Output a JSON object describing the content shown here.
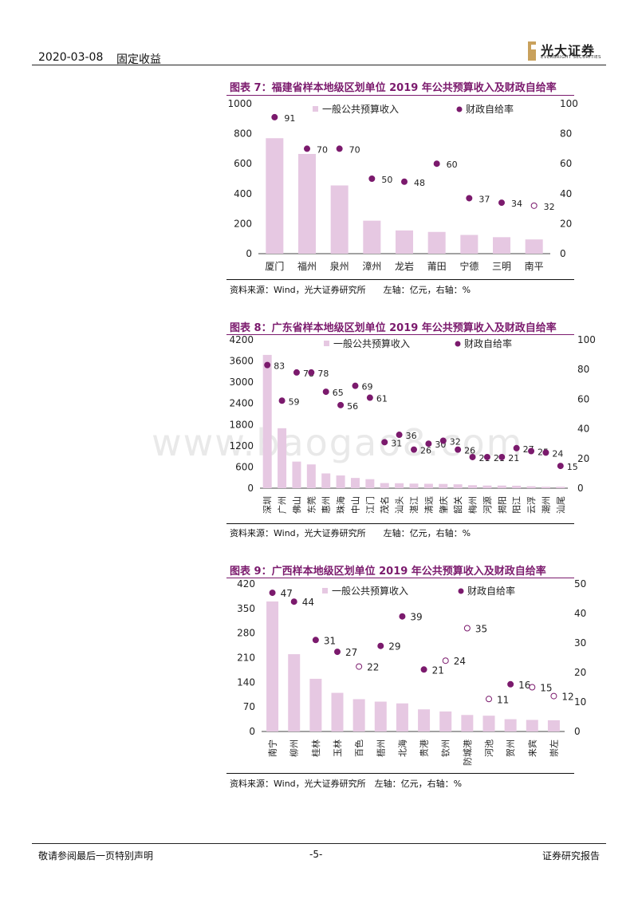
{
  "header": {
    "date": "2020-03-08",
    "category": "固定收益",
    "logo_name": "光大证券",
    "logo_en": "EVERBRIGHT SECURITIES"
  },
  "footer": {
    "disclaimer": "敬请参阅最后一页特别声明",
    "page": "-5-",
    "doc_type": "证券研究报告"
  },
  "watermark": "www.baogao8.com",
  "charts": [
    {
      "title": "图表 7：福建省样本地级区划单位 2019 年公共预算收入及财政自给率",
      "source": "资料来源：Wind，光大证券研究所　　左轴：亿元，右轴：%"
    },
    {
      "title": "图表 8：广东省样本地级区划单位 2019 年公共预算收入及财政自给率",
      "source": "资料来源：Wind，光大证券研究所　　左轴：亿元，右轴：%"
    },
    {
      "title": "图表 9：广西样本地级区划单位 2019 年公共预算收入及财政自给率",
      "source": "资料来源：Wind，光大证券研究所　左轴：亿元，右轴：%"
    }
  ],
  "chart_data": [
    {
      "type": "bar",
      "title": "福建省样本地级区划单位 2019 年公共预算收入及财政自给率",
      "categories": [
        "厦门",
        "福州",
        "泉州",
        "漳州",
        "龙岩",
        "莆田",
        "宁德",
        "三明",
        "南平"
      ],
      "series": [
        {
          "name": "一般公共预算收入",
          "axis": "left",
          "values": [
            770,
            665,
            455,
            220,
            155,
            145,
            125,
            110,
            95
          ]
        },
        {
          "name": "财政自给率",
          "axis": "right",
          "type": "scatter",
          "values": [
            91,
            70,
            70,
            50,
            48,
            60,
            37,
            34,
            32
          ],
          "hollow": [
            8
          ]
        }
      ],
      "ylim": [
        0,
        1000
      ],
      "y2lim": [
        0,
        100
      ],
      "yticks": [
        0,
        200,
        400,
        600,
        800,
        1000
      ],
      "y2ticks": [
        0,
        20,
        40,
        60,
        80,
        100
      ],
      "bar_color": "#e6c8e2",
      "dot_color": "#7b1a6d"
    },
    {
      "type": "bar",
      "title": "广东省样本地级区划单位 2019 年公共预算收入及财政自给率",
      "categories": [
        "深圳",
        "广州",
        "佛山",
        "东莞",
        "惠州",
        "珠海",
        "中山",
        "江门",
        "茂名",
        "汕头",
        "湛江",
        "清远",
        "肇庆",
        "韶关",
        "梅州",
        "河源",
        "揭阳",
        "阳江",
        "云浮",
        "潮州",
        "汕尾"
      ],
      "series": [
        {
          "name": "一般公共预算收入",
          "axis": "left",
          "values": [
            3773,
            1697,
            753,
            673,
            418,
            360,
            290,
            255,
            145,
            140,
            130,
            125,
            120,
            110,
            85,
            75,
            75,
            70,
            55,
            40,
            40
          ]
        },
        {
          "name": "财政自给率",
          "axis": "right",
          "type": "scatter",
          "values": [
            83,
            59,
            78,
            78,
            65,
            56,
            69,
            61,
            31,
            36,
            26,
            30,
            32,
            26,
            21,
            21,
            21,
            27,
            25,
            24,
            15
          ],
          "hollow": []
        }
      ],
      "ylim": [
        0,
        4200
      ],
      "y2lim": [
        0,
        100
      ],
      "yticks": [
        0,
        600,
        1200,
        1800,
        2400,
        3000,
        3600,
        4200
      ],
      "y2ticks": [
        0,
        20,
        40,
        60,
        80,
        100
      ],
      "bar_color": "#e6c8e2",
      "dot_color": "#7b1a6d"
    },
    {
      "type": "bar",
      "title": "广西样本地级区划单位 2019 年公共预算收入及财政自给率",
      "categories": [
        "南宁",
        "柳州",
        "桂林",
        "玉林",
        "百色",
        "梧州",
        "北海",
        "贵港",
        "钦州",
        "防城港",
        "河池",
        "贺州",
        "来宾",
        "崇左"
      ],
      "series": [
        {
          "name": "一般公共预算收入",
          "axis": "left",
          "values": [
            370,
            220,
            150,
            110,
            92,
            85,
            80,
            63,
            57,
            47,
            45,
            35,
            33,
            32
          ]
        },
        {
          "name": "财政自给率",
          "axis": "right",
          "type": "scatter",
          "values": [
            47,
            44,
            31,
            27,
            22,
            29,
            39,
            21,
            24,
            35,
            11,
            16,
            15,
            12
          ],
          "hollow": [
            4,
            8,
            9,
            10,
            12,
            13
          ]
        }
      ],
      "ylim": [
        0,
        420
      ],
      "y2lim": [
        0,
        50
      ],
      "yticks": [
        0,
        70,
        140,
        210,
        280,
        350,
        420
      ],
      "y2ticks": [
        0,
        10,
        20,
        30,
        40,
        50
      ],
      "bar_color": "#e6c8e2",
      "dot_color": "#7b1a6d"
    }
  ]
}
